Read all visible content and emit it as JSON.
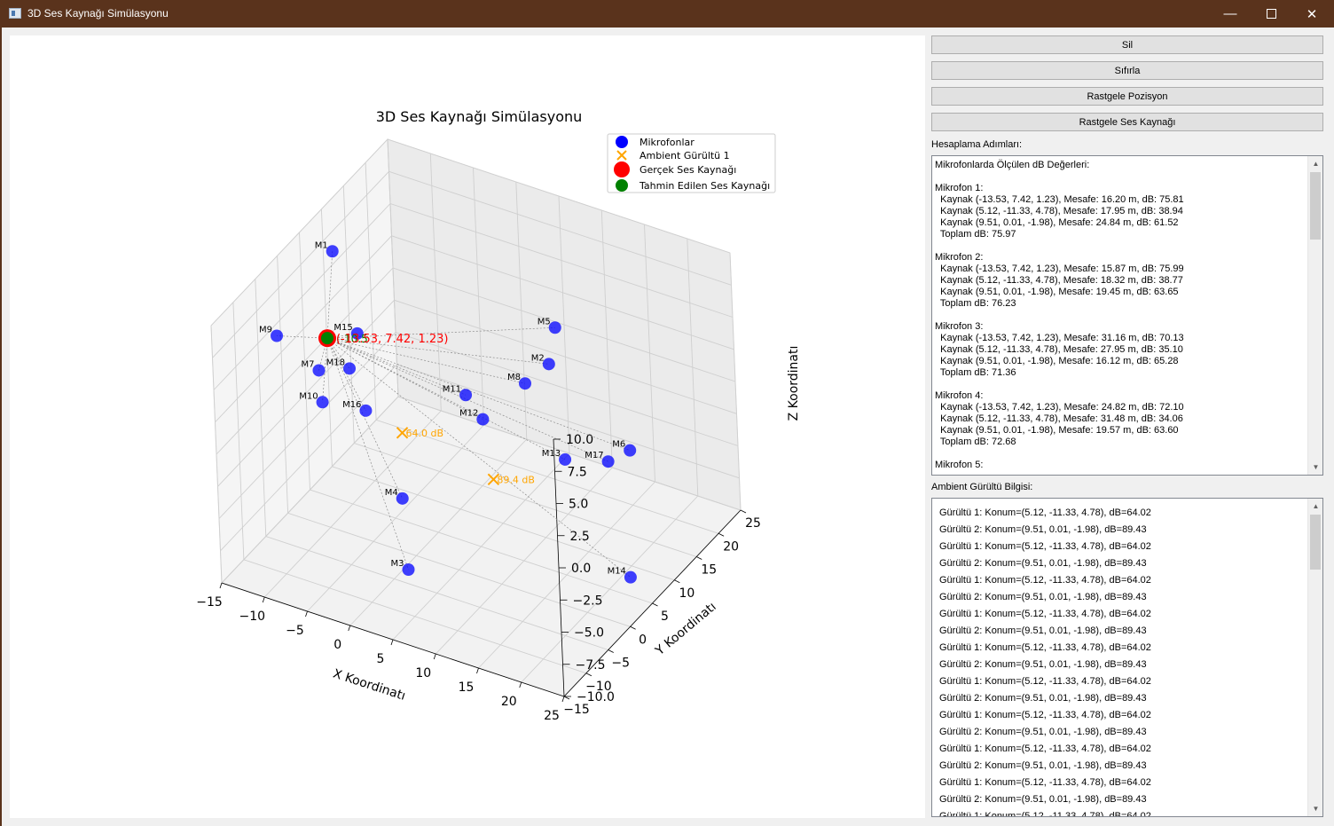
{
  "window": {
    "title": "3D Ses Kaynağı Simülasyonu",
    "minimize_glyph": "—",
    "close_glyph": "✕"
  },
  "buttons": {
    "sil": "Sil",
    "sifirla": "Sıfırla",
    "rastgele_pozisyon": "Rastgele Pozisyon",
    "rastgele_kaynak": "Rastgele Ses Kaynağı"
  },
  "labels": {
    "steps": "Hesaplama Adımları:",
    "ambient": "Ambient Gürültü Bilgisi:"
  },
  "steps_text": "Mikrofonlarda Ölçülen dB Değerleri:\n\nMikrofon 1:\n  Kaynak (-13.53, 7.42, 1.23), Mesafe: 16.20 m, dB: 75.81\n  Kaynak (5.12, -11.33, 4.78), Mesafe: 17.95 m, dB: 38.94\n  Kaynak (9.51, 0.01, -1.98), Mesafe: 24.84 m, dB: 61.52\n  Toplam dB: 75.97\n\nMikrofon 2:\n  Kaynak (-13.53, 7.42, 1.23), Mesafe: 15.87 m, dB: 75.99\n  Kaynak (5.12, -11.33, 4.78), Mesafe: 18.32 m, dB: 38.77\n  Kaynak (9.51, 0.01, -1.98), Mesafe: 19.45 m, dB: 63.65\n  Toplam dB: 76.23\n\nMikrofon 3:\n  Kaynak (-13.53, 7.42, 1.23), Mesafe: 31.16 m, dB: 70.13\n  Kaynak (5.12, -11.33, 4.78), Mesafe: 27.95 m, dB: 35.10\n  Kaynak (9.51, 0.01, -1.98), Mesafe: 16.12 m, dB: 65.28\n  Toplam dB: 71.36\n\nMikrofon 4:\n  Kaynak (-13.53, 7.42, 1.23), Mesafe: 24.82 m, dB: 72.10\n  Kaynak (5.12, -11.33, 4.78), Mesafe: 31.48 m, dB: 34.06\n  Kaynak (9.51, 0.01, -1.98), Mesafe: 19.57 m, dB: 63.60\n  Toplam dB: 72.68\n\nMikrofon 5:",
  "ambient_lines": [
    "Gürültü 1: Konum=(5.12, -11.33, 4.78), dB=64.02",
    "Gürültü 2: Konum=(9.51, 0.01, -1.98), dB=89.43",
    "Gürültü 1: Konum=(5.12, -11.33, 4.78), dB=64.02",
    "Gürültü 2: Konum=(9.51, 0.01, -1.98), dB=89.43",
    "Gürültü 1: Konum=(5.12, -11.33, 4.78), dB=64.02",
    "Gürültü 2: Konum=(9.51, 0.01, -1.98), dB=89.43",
    "Gürültü 1: Konum=(5.12, -11.33, 4.78), dB=64.02",
    "Gürültü 2: Konum=(9.51, 0.01, -1.98), dB=89.43",
    "Gürültü 1: Konum=(5.12, -11.33, 4.78), dB=64.02",
    "Gürültü 2: Konum=(9.51, 0.01, -1.98), dB=89.43",
    "Gürültü 1: Konum=(5.12, -11.33, 4.78), dB=64.02",
    "Gürültü 2: Konum=(9.51, 0.01, -1.98), dB=89.43",
    "Gürültü 1: Konum=(5.12, -11.33, 4.78), dB=64.02",
    "Gürültü 2: Konum=(9.51, 0.01, -1.98), dB=89.43",
    "Gürültü 1: Konum=(5.12, -11.33, 4.78), dB=64.02",
    "Gürültü 2: Konum=(9.51, 0.01, -1.98), dB=89.43",
    "Gürültü 1: Konum=(5.12, -11.33, 4.78), dB=64.02",
    "Gürültü 2: Konum=(9.51, 0.01, -1.98), dB=89.43",
    "Gürültü 1: Konum=(5.12, -11.33, 4.78), dB=64.02"
  ],
  "chart_data": {
    "type": "scatter",
    "title": "3D Ses Kaynağı Simülasyonu",
    "xlabel": "X Koordinatı",
    "ylabel": "Y Koordinatı",
    "zlabel": "Z Koordinatı",
    "xlim": [
      -15,
      25
    ],
    "ylim": [
      -15,
      25
    ],
    "zlim": [
      -10,
      10
    ],
    "x_ticks": [
      "−15",
      "−10",
      "−5",
      "0",
      "5",
      "10",
      "15",
      "20",
      "25"
    ],
    "y_ticks": [
      "−15",
      "−10",
      "−5",
      "0",
      "5",
      "10",
      "15",
      "20",
      "25"
    ],
    "z_ticks": [
      "−10.0",
      "−7.5",
      "−5.0",
      "−2.5",
      "0.0",
      "2.5",
      "5.0",
      "7.5",
      "10.0"
    ],
    "legend": {
      "placement": "top-right",
      "entries": [
        "Mikrofonlar",
        "Ambient Gürültü 1",
        "Gerçek Ses Kaynağı",
        "Tahmin Edilen Ses Kaynağı"
      ]
    },
    "colors": {
      "microphones": "#0000ff",
      "ambient": "#ffa500",
      "real_source": "#ff0000",
      "estimated_source": "#008000"
    },
    "real_source": {
      "x": -13.53,
      "y": 7.42,
      "z": 1.23,
      "label": "(-13.53, 7.42, 1.23)"
    },
    "estimated_source_label": "(-10.5",
    "ambient": [
      {
        "x": 5.12,
        "y": -11.33,
        "z": 4.78,
        "label": "64.0 dB"
      },
      {
        "x": 9.51,
        "y": 0.01,
        "z": -1.98,
        "label": "89.4 dB"
      }
    ],
    "microphones": [
      {
        "name": "M1",
        "x": -15,
        "y": 12,
        "z": 6.0
      },
      {
        "name": "M2",
        "x": 3,
        "y": 25,
        "z": -3.5
      },
      {
        "name": "M3",
        "x": 5,
        "y": -11,
        "z": -6.0
      },
      {
        "name": "M4",
        "x": 3,
        "y": -8,
        "z": -2.0
      },
      {
        "name": "M5",
        "x": 5,
        "y": 23,
        "z": 0.5
      },
      {
        "name": "M6",
        "x": 22,
        "y": 7,
        "z": 0.5
      },
      {
        "name": "M7",
        "x": -9,
        "y": -3,
        "z": 3.5
      },
      {
        "name": "M8",
        "x": 11,
        "y": 5,
        "z": 4.0
      },
      {
        "name": "M9",
        "x": -10,
        "y": -10,
        "z": 8.5
      },
      {
        "name": "M10",
        "x": -6,
        "y": -8,
        "z": 3.5
      },
      {
        "name": "M11",
        "x": 5,
        "y": 3,
        "z": 2.5
      },
      {
        "name": "M12",
        "x": 8,
        "y": 1,
        "z": 2.0
      },
      {
        "name": "M13",
        "x": 17,
        "y": 2,
        "z": 0.5
      },
      {
        "name": "M14",
        "x": 22,
        "y": 6,
        "z": -9.0
      },
      {
        "name": "M15",
        "x": -7,
        "y": 2,
        "z": 5.0
      },
      {
        "name": "M16",
        "x": -2,
        "y": -6,
        "z": 3.0
      },
      {
        "name": "M17",
        "x": 21,
        "y": 4,
        "z": 0.5
      },
      {
        "name": "M18",
        "x": -7,
        "y": 0,
        "z": 3.0
      }
    ]
  }
}
